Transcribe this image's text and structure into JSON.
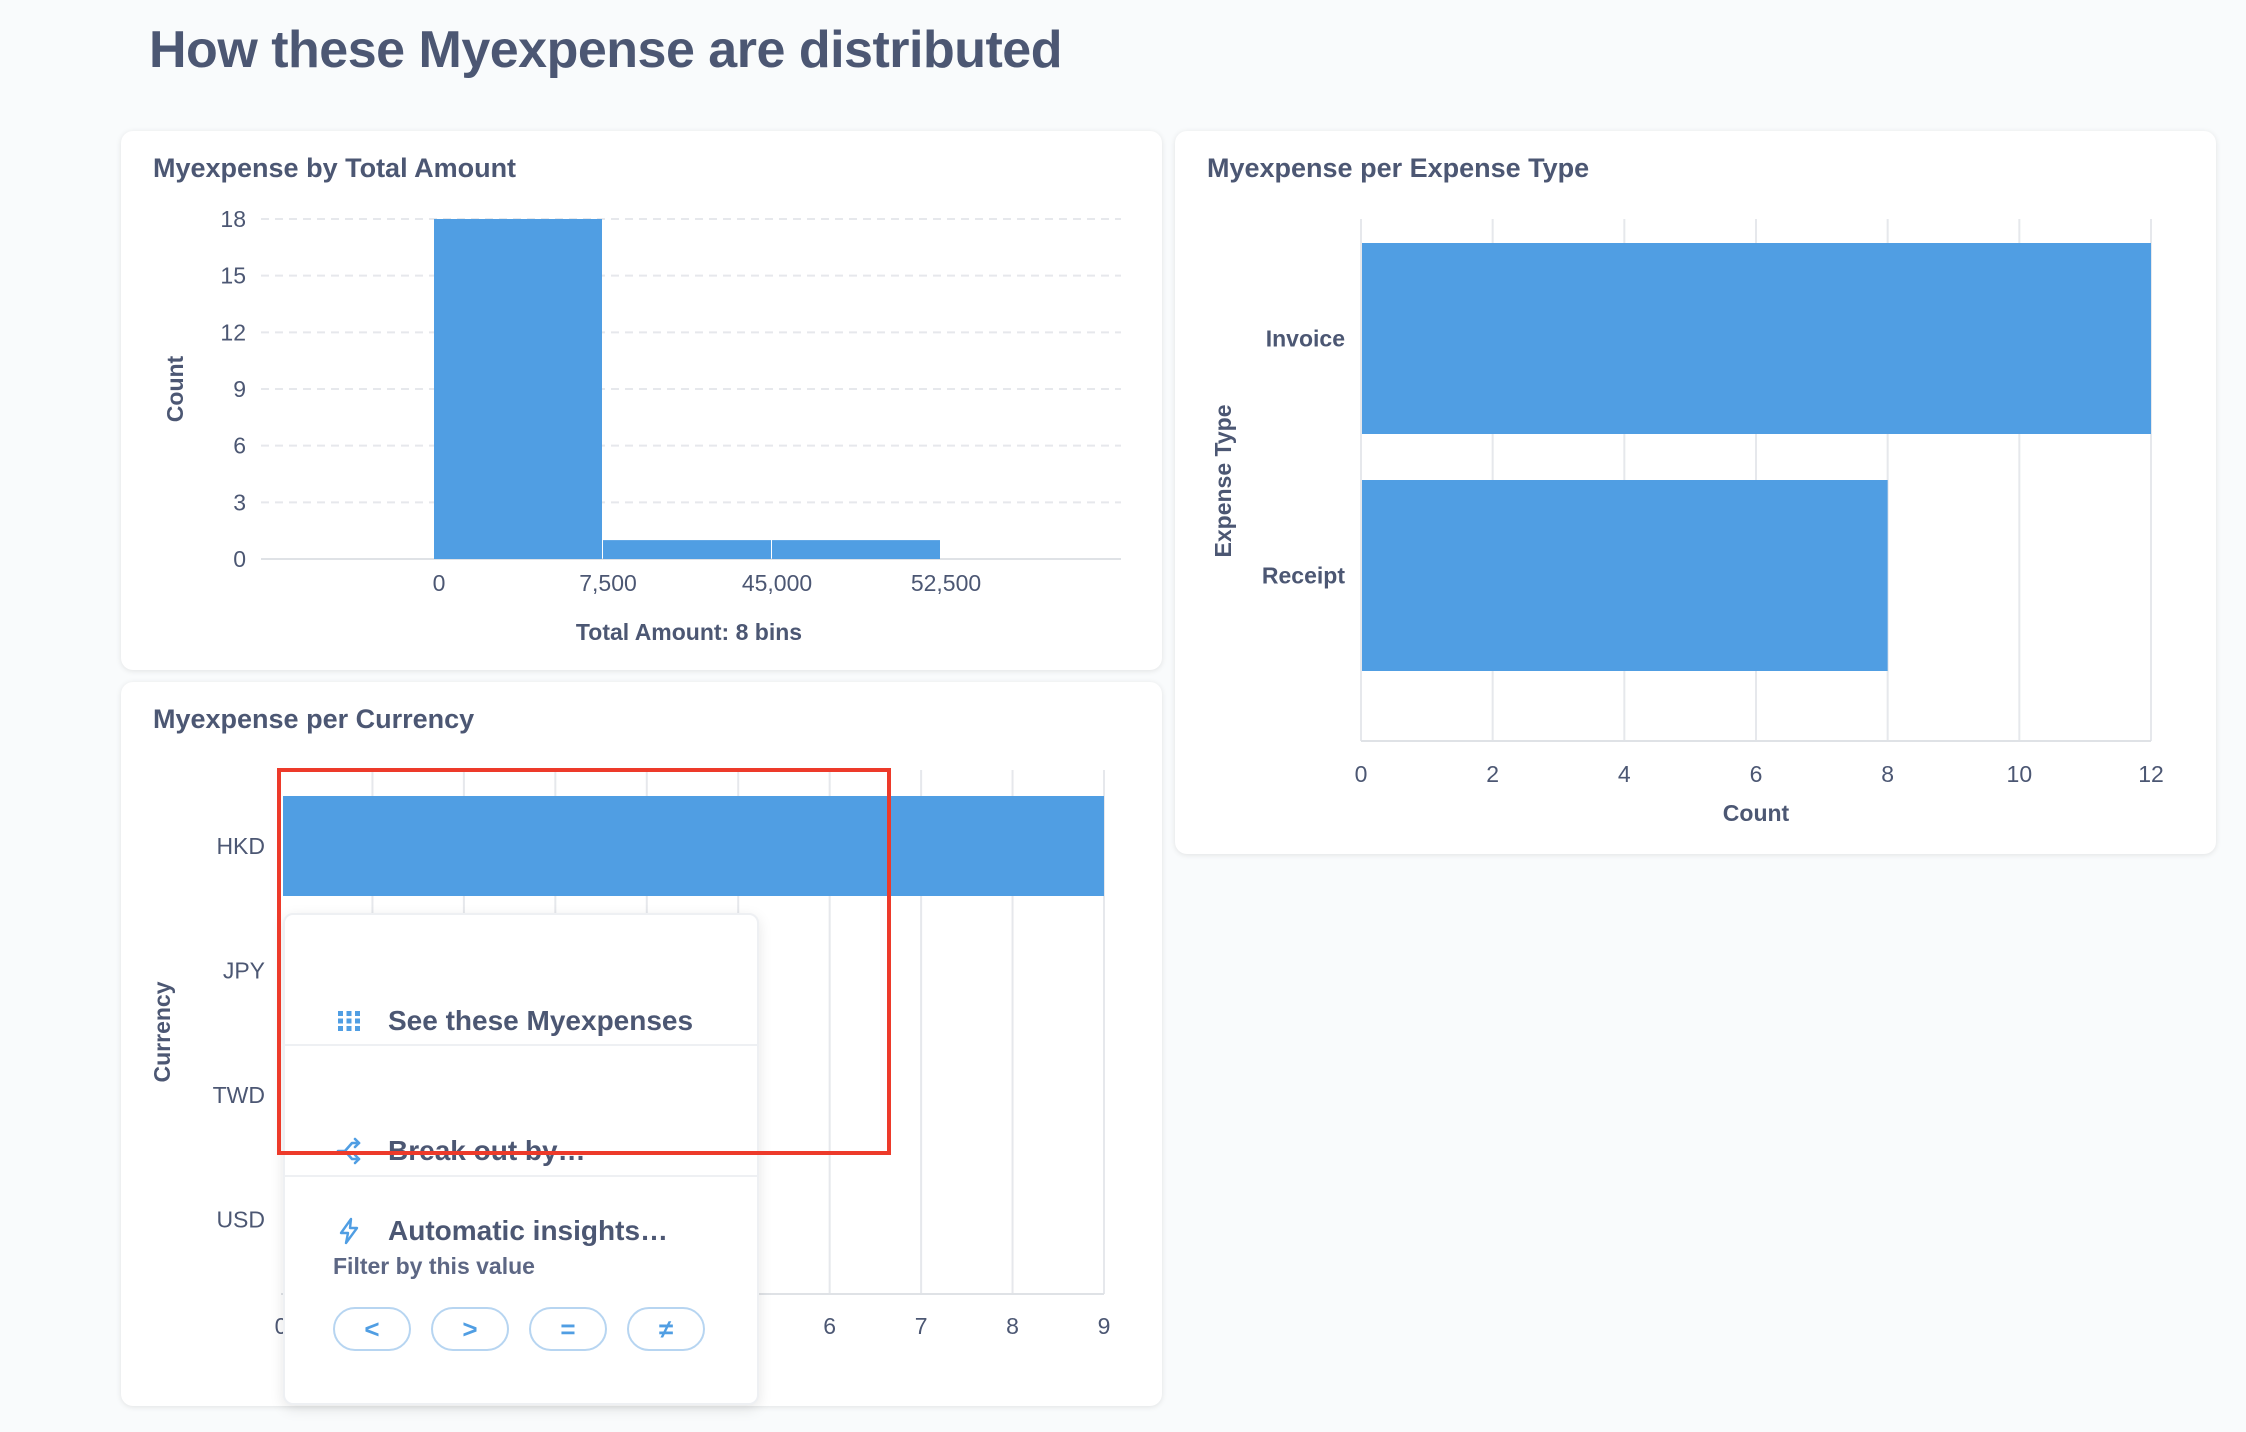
{
  "page": {
    "title": "How these Myexpense are distributed"
  },
  "colors": {
    "bar": "#509ee3",
    "grid": "#e6e8ec",
    "highlight": "#ed3a2a",
    "text": "#4c5773"
  },
  "cards": {
    "total_amount": {
      "title": "Myexpense by Total Amount",
      "chart_data": {
        "type": "bar",
        "title": "Myexpense by Total Amount",
        "xlabel": "Total Amount: 8 bins",
        "ylabel": "Count",
        "y_ticks": [
          "0",
          "3",
          "6",
          "9",
          "12",
          "15",
          "18"
        ],
        "x_tick_labels": [
          "0",
          "7,500",
          "45,000",
          "52,500"
        ],
        "bins": [
          {
            "label": "0 – 7,500",
            "value": 18
          },
          {
            "label": "7,500 – 45,000",
            "value": 1
          },
          {
            "label": "45,000 – 52,500",
            "value": 1
          }
        ],
        "ylim": [
          0,
          18
        ]
      }
    },
    "expense_type": {
      "title": "Myexpense per Expense Type",
      "chart_data": {
        "type": "bar",
        "orientation": "horizontal",
        "title": "Myexpense per Expense Type",
        "xlabel": "Count",
        "ylabel": "Expense Type",
        "categories": [
          "Invoice",
          "Receipt"
        ],
        "values": [
          12,
          8
        ],
        "x_ticks": [
          "0",
          "2",
          "4",
          "6",
          "8",
          "10",
          "12"
        ],
        "xlim": [
          0,
          12
        ]
      }
    },
    "currency": {
      "title": "Myexpense per Currency",
      "chart_data": {
        "type": "bar",
        "orientation": "horizontal",
        "title": "Myexpense per Currency",
        "ylabel": "Currency",
        "categories": [
          "HKD",
          "JPY",
          "TWD",
          "USD"
        ],
        "values": [
          9,
          null,
          null,
          null
        ],
        "visible_x_ticks": [
          "0",
          "6",
          "7",
          "8",
          "9"
        ],
        "xlim": [
          0,
          9
        ]
      }
    }
  },
  "popover": {
    "items": [
      {
        "label": "See these Myexpenses",
        "icon": "grid-icon"
      },
      {
        "label": "Break out by…",
        "icon": "branch-icon"
      },
      {
        "label": "Automatic insights…",
        "icon": "bolt-icon"
      }
    ],
    "filter_label": "Filter by this value",
    "filter_buttons": [
      "<",
      ">",
      "=",
      "≠"
    ]
  }
}
